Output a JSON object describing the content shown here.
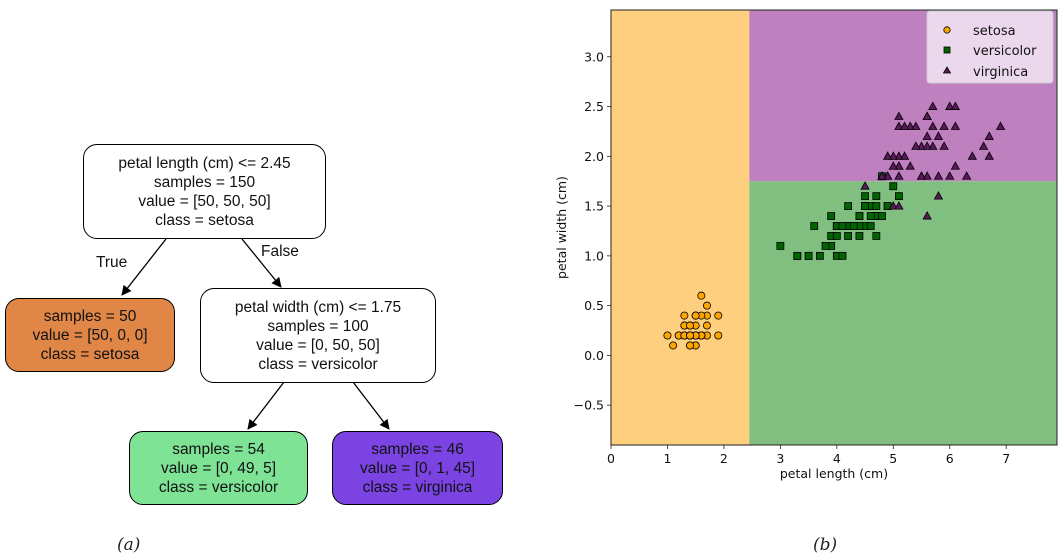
{
  "tree": {
    "root": {
      "lines": [
        "petal length (cm) <= 2.45",
        "samples = 150",
        "value = [50, 50, 50]",
        "class = setosa"
      ],
      "fill": "#ffffff"
    },
    "left_leaf": {
      "lines": [
        "samples = 50",
        "value = [50, 0, 0]",
        "class = setosa"
      ],
      "fill": "#e08647"
    },
    "right_split": {
      "lines": [
        "petal width (cm) <= 1.75",
        "samples = 100",
        "value = [0, 50, 50]",
        "class = versicolor"
      ],
      "fill": "#ffffff"
    },
    "leaf_versicolor": {
      "lines": [
        "samples = 54",
        "value = [0, 49, 5]",
        "class = versicolor"
      ],
      "fill": "#7fe396"
    },
    "leaf_virginica": {
      "lines": [
        "samples = 46",
        "value = [0, 1, 45]",
        "class = virginica"
      ],
      "fill": "#7a43e2"
    },
    "edge_true_label": "True",
    "edge_false_label": "False"
  },
  "captions": {
    "a": "(a)",
    "b": "(b)"
  },
  "chart_data": {
    "type": "scatter",
    "title": "",
    "xlabel": "petal length (cm)",
    "ylabel": "petal width (cm)",
    "xlim": [
      0,
      7.9
    ],
    "ylim": [
      -0.9,
      3.47
    ],
    "xticks": [
      0,
      1,
      2,
      3,
      4,
      5,
      6,
      7
    ],
    "yticks": [
      -0.5,
      0.0,
      0.5,
      1.0,
      1.5,
      2.0,
      2.5,
      3.0
    ],
    "ytick_labels": [
      "−0.5",
      "0.0",
      "0.5",
      "1.0",
      "1.5",
      "2.0",
      "2.5",
      "3.0"
    ],
    "grid": false,
    "legend_position": "top-right",
    "regions": [
      {
        "name": "setosa",
        "x": [
          0,
          2.45
        ],
        "y": [
          -0.9,
          3.47
        ],
        "color": "#fdcf7e"
      },
      {
        "name": "versicolor",
        "x": [
          2.45,
          7.9
        ],
        "y": [
          -0.9,
          1.75
        ],
        "color": "#80bf80"
      },
      {
        "name": "virginica",
        "x": [
          2.45,
          7.9
        ],
        "y": [
          1.75,
          3.47
        ],
        "color": "#bf80bf"
      }
    ],
    "series": [
      {
        "name": "setosa",
        "marker": "circle",
        "color": "#ffa500",
        "points": [
          [
            1.4,
            0.2
          ],
          [
            1.4,
            0.2
          ],
          [
            1.3,
            0.2
          ],
          [
            1.5,
            0.2
          ],
          [
            1.4,
            0.2
          ],
          [
            1.7,
            0.4
          ],
          [
            1.4,
            0.3
          ],
          [
            1.5,
            0.2
          ],
          [
            1.4,
            0.2
          ],
          [
            1.5,
            0.1
          ],
          [
            1.5,
            0.2
          ],
          [
            1.6,
            0.2
          ],
          [
            1.4,
            0.1
          ],
          [
            1.1,
            0.1
          ],
          [
            1.2,
            0.2
          ],
          [
            1.5,
            0.4
          ],
          [
            1.3,
            0.4
          ],
          [
            1.4,
            0.3
          ],
          [
            1.7,
            0.3
          ],
          [
            1.5,
            0.3
          ],
          [
            1.7,
            0.2
          ],
          [
            1.5,
            0.4
          ],
          [
            1.0,
            0.2
          ],
          [
            1.7,
            0.5
          ],
          [
            1.9,
            0.2
          ],
          [
            1.6,
            0.2
          ],
          [
            1.6,
            0.4
          ],
          [
            1.5,
            0.2
          ],
          [
            1.4,
            0.2
          ],
          [
            1.6,
            0.2
          ],
          [
            1.6,
            0.2
          ],
          [
            1.5,
            0.4
          ],
          [
            1.5,
            0.1
          ],
          [
            1.4,
            0.2
          ],
          [
            1.5,
            0.2
          ],
          [
            1.2,
            0.2
          ],
          [
            1.3,
            0.2
          ],
          [
            1.4,
            0.1
          ],
          [
            1.3,
            0.2
          ],
          [
            1.5,
            0.2
          ],
          [
            1.3,
            0.3
          ],
          [
            1.3,
            0.3
          ],
          [
            1.3,
            0.2
          ],
          [
            1.6,
            0.6
          ],
          [
            1.9,
            0.4
          ],
          [
            1.4,
            0.3
          ],
          [
            1.6,
            0.2
          ],
          [
            1.4,
            0.2
          ],
          [
            1.5,
            0.2
          ],
          [
            1.4,
            0.2
          ]
        ]
      },
      {
        "name": "versicolor",
        "marker": "square",
        "color": "#006400",
        "points": [
          [
            4.7,
            1.4
          ],
          [
            4.5,
            1.5
          ],
          [
            4.9,
            1.5
          ],
          [
            4.0,
            1.3
          ],
          [
            4.6,
            1.5
          ],
          [
            4.5,
            1.3
          ],
          [
            4.7,
            1.6
          ],
          [
            3.3,
            1.0
          ],
          [
            4.6,
            1.3
          ],
          [
            3.9,
            1.4
          ],
          [
            3.5,
            1.0
          ],
          [
            4.2,
            1.5
          ],
          [
            4.0,
            1.0
          ],
          [
            4.7,
            1.4
          ],
          [
            3.6,
            1.3
          ],
          [
            4.4,
            1.4
          ],
          [
            4.5,
            1.5
          ],
          [
            4.1,
            1.0
          ],
          [
            4.5,
            1.5
          ],
          [
            3.9,
            1.1
          ],
          [
            4.8,
            1.8
          ],
          [
            4.0,
            1.3
          ],
          [
            4.9,
            1.5
          ],
          [
            4.7,
            1.2
          ],
          [
            4.3,
            1.3
          ],
          [
            4.4,
            1.4
          ],
          [
            4.8,
            1.4
          ],
          [
            5.0,
            1.7
          ],
          [
            4.5,
            1.5
          ],
          [
            3.5,
            1.0
          ],
          [
            3.8,
            1.1
          ],
          [
            3.7,
            1.0
          ],
          [
            3.9,
            1.2
          ],
          [
            5.1,
            1.6
          ],
          [
            4.5,
            1.5
          ],
          [
            4.5,
            1.6
          ],
          [
            4.7,
            1.5
          ],
          [
            4.4,
            1.3
          ],
          [
            4.1,
            1.3
          ],
          [
            4.0,
            1.3
          ],
          [
            4.4,
            1.2
          ],
          [
            4.6,
            1.4
          ],
          [
            4.0,
            1.2
          ],
          [
            3.3,
            1.0
          ],
          [
            4.2,
            1.3
          ],
          [
            4.2,
            1.2
          ],
          [
            4.2,
            1.3
          ],
          [
            4.3,
            1.3
          ],
          [
            3.0,
            1.1
          ],
          [
            4.1,
            1.3
          ]
        ]
      },
      {
        "name": "virginica",
        "marker": "triangle",
        "color": "#5a1a5a",
        "points": [
          [
            6.0,
            2.5
          ],
          [
            5.1,
            1.9
          ],
          [
            5.9,
            2.1
          ],
          [
            5.6,
            1.8
          ],
          [
            5.8,
            2.2
          ],
          [
            6.6,
            2.1
          ],
          [
            4.5,
            1.7
          ],
          [
            6.3,
            1.8
          ],
          [
            5.8,
            1.8
          ],
          [
            6.1,
            2.5
          ],
          [
            5.1,
            2.0
          ],
          [
            5.3,
            1.9
          ],
          [
            5.5,
            2.1
          ],
          [
            5.0,
            2.0
          ],
          [
            5.1,
            2.4
          ],
          [
            5.3,
            2.3
          ],
          [
            5.5,
            1.8
          ],
          [
            6.7,
            2.2
          ],
          [
            6.9,
            2.3
          ],
          [
            5.0,
            1.5
          ],
          [
            5.7,
            2.3
          ],
          [
            4.9,
            2.0
          ],
          [
            6.7,
            2.0
          ],
          [
            4.9,
            1.8
          ],
          [
            5.7,
            2.1
          ],
          [
            6.0,
            1.8
          ],
          [
            4.8,
            1.8
          ],
          [
            4.9,
            1.8
          ],
          [
            5.6,
            2.1
          ],
          [
            5.8,
            1.6
          ],
          [
            6.1,
            1.9
          ],
          [
            6.4,
            2.0
          ],
          [
            5.6,
            2.2
          ],
          [
            5.1,
            1.5
          ],
          [
            5.6,
            1.4
          ],
          [
            6.1,
            2.3
          ],
          [
            5.6,
            2.4
          ],
          [
            5.5,
            1.8
          ],
          [
            4.8,
            1.8
          ],
          [
            5.4,
            2.1
          ],
          [
            5.6,
            2.4
          ],
          [
            5.1,
            2.3
          ],
          [
            5.1,
            1.9
          ],
          [
            5.9,
            2.3
          ],
          [
            5.7,
            2.5
          ],
          [
            5.2,
            2.3
          ],
          [
            5.0,
            1.9
          ],
          [
            5.2,
            2.0
          ],
          [
            5.4,
            2.3
          ],
          [
            5.1,
            1.8
          ]
        ]
      }
    ]
  }
}
